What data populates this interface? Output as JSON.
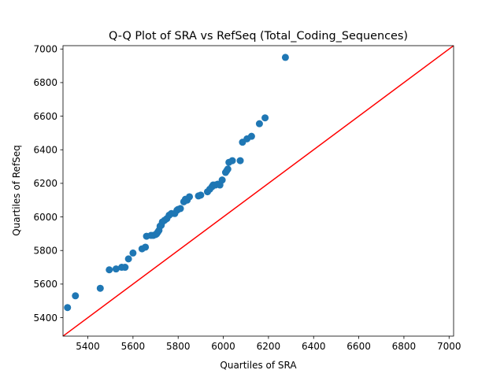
{
  "colors": {
    "points": "#1f77b4",
    "reference_line": "#ff0000",
    "axes": "#000000",
    "background": "#ffffff"
  },
  "chart_data": {
    "type": "scatter",
    "title": "Q-Q Plot of SRA vs RefSeq (Total_Coding_Sequences)",
    "xlabel": "Quartiles of SRA",
    "ylabel": "Quartiles of RefSeq",
    "xlim": [
      5290,
      7020
    ],
    "ylim": [
      5290,
      7020
    ],
    "x_ticks": [
      5400,
      5600,
      5800,
      6000,
      6200,
      6400,
      6600,
      6800,
      7000
    ],
    "y_ticks": [
      5400,
      5600,
      5800,
      6000,
      6200,
      6400,
      6600,
      6800,
      7000
    ],
    "grid": false,
    "reference_line": {
      "label": "y = x",
      "from": [
        5290,
        5290
      ],
      "to": [
        7020,
        7020
      ]
    },
    "series": [
      {
        "x": [
          5310,
          5345,
          5455,
          5495,
          5525,
          5550,
          5565,
          5580,
          5600,
          5640,
          5655,
          5660,
          5680,
          5690,
          5700,
          5705,
          5710,
          5715,
          5720,
          5725,
          5730,
          5740,
          5750,
          5760,
          5770,
          5785,
          5795,
          5800,
          5810,
          5825,
          5832,
          5840,
          5850,
          5890,
          5900,
          5930,
          5940,
          5950,
          5955,
          5965,
          5975,
          5985,
          5995,
          6010,
          6015,
          6020,
          6025,
          6040,
          6075,
          6085,
          6105,
          6125,
          6160,
          6185,
          6275
        ],
        "y": [
          5460,
          5530,
          5575,
          5685,
          5690,
          5700,
          5700,
          5750,
          5785,
          5810,
          5820,
          5885,
          5890,
          5890,
          5895,
          5900,
          5910,
          5920,
          5945,
          5950,
          5970,
          5980,
          5990,
          6010,
          6020,
          6020,
          6040,
          6045,
          6050,
          6090,
          6105,
          6100,
          6120,
          6125,
          6130,
          6150,
          6165,
          6180,
          6190,
          6190,
          6195,
          6190,
          6220,
          6265,
          6275,
          6285,
          6325,
          6335,
          6335,
          6445,
          6465,
          6480,
          6555,
          6590,
          6950
        ]
      }
    ]
  }
}
